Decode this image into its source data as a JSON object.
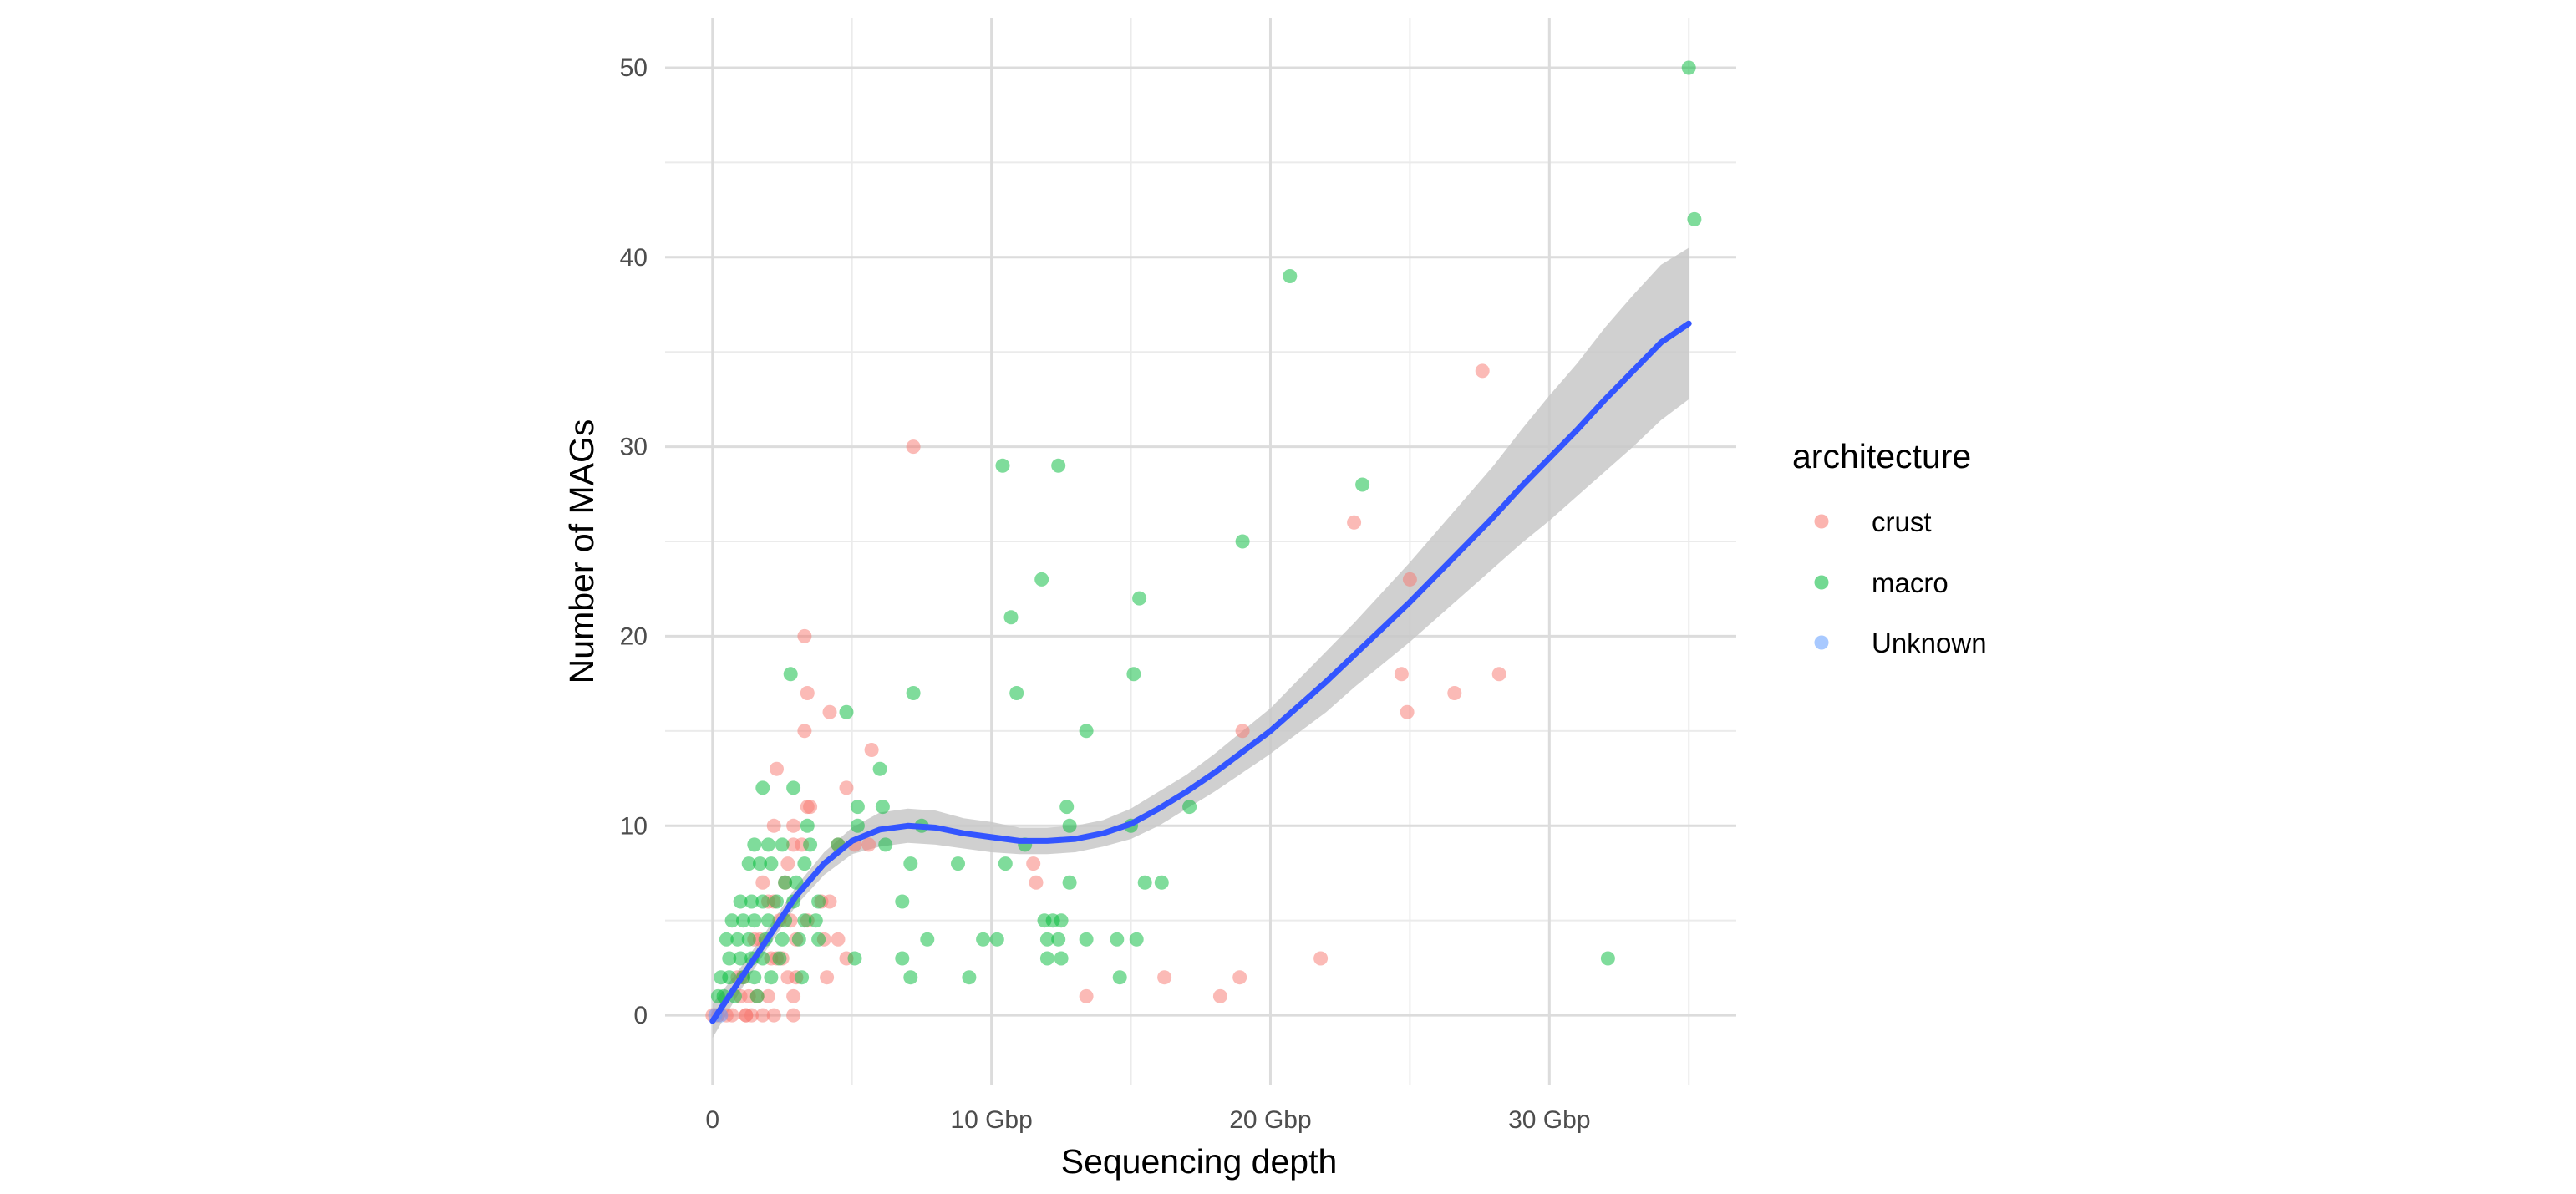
{
  "chart_data": {
    "type": "scatter",
    "title": "",
    "xlabel": "Sequencing depth",
    "ylabel": "Number of MAGs",
    "x_unit": "Gbp",
    "xlim": [
      -1.7,
      36.7
    ],
    "ylim": [
      -3.7,
      52.6
    ],
    "x_ticks": [
      {
        "value": 0,
        "label": "0"
      },
      {
        "value": 10,
        "label": "10 Gbp"
      },
      {
        "value": 20,
        "label": "20 Gbp"
      },
      {
        "value": 30,
        "label": "30 Gbp"
      }
    ],
    "y_ticks": [
      {
        "value": 0,
        "label": "0"
      },
      {
        "value": 10,
        "label": "10"
      },
      {
        "value": 20,
        "label": "20"
      },
      {
        "value": 30,
        "label": "30"
      },
      {
        "value": 40,
        "label": "40"
      },
      {
        "value": 50,
        "label": "50"
      }
    ],
    "grid": true,
    "legend": {
      "title": "architecture",
      "position": "right",
      "entries": [
        {
          "label": "crust",
          "color": "#F8766D"
        },
        {
          "label": "macro",
          "color": "#00BA38"
        },
        {
          "label": "Unknown",
          "color": "#619CFF"
        }
      ]
    },
    "series": [
      {
        "name": "crust",
        "color": "#F8766D",
        "x": [
          7.2,
          3.3,
          3.4,
          4.2,
          3.3,
          2.3,
          2.9,
          5.7,
          3.4,
          3.5,
          4.8,
          2.2,
          2.9,
          3.2,
          4.5,
          5.1,
          5.6,
          2.7,
          4.2,
          3.9,
          2.6,
          2.8,
          3.4,
          4.0,
          3.0,
          4.5,
          4.8,
          2.5,
          2.7,
          3.0,
          4.1,
          1.8,
          2.0,
          2.2,
          2.4,
          1.5,
          1.7,
          2.1,
          2.3,
          2.9,
          0.9,
          1.1,
          1.3,
          1.6,
          2.0,
          1.0,
          1.2,
          1.4,
          1.8,
          2.2,
          2.9,
          0.0,
          0.2,
          0.5,
          0.7,
          1.2,
          11.5,
          11.6,
          13.4,
          16.2,
          18.2,
          18.9,
          21.8,
          19.0,
          27.6,
          23.0,
          25.0,
          24.7,
          24.9,
          26.6,
          28.2
        ],
        "y": [
          30,
          20,
          17,
          16,
          15,
          13,
          10,
          14,
          11,
          11,
          12,
          10,
          9,
          9,
          9,
          9,
          9,
          8,
          6,
          6,
          7,
          5,
          5,
          4,
          4,
          4,
          3,
          3,
          2,
          2,
          2,
          7,
          6,
          6,
          5,
          4,
          4,
          3,
          3,
          0,
          2,
          2,
          1,
          1,
          1,
          1,
          0,
          0,
          0,
          0,
          1,
          0,
          0,
          0,
          0,
          0,
          8,
          7,
          1,
          2,
          1,
          2,
          3,
          15,
          34,
          26,
          23,
          18,
          16,
          17,
          18
        ]
      },
      {
        "name": "macro",
        "color": "#00BA38",
        "x": [
          35.0,
          35.2,
          20.7,
          10.4,
          12.4,
          23.3,
          19.0,
          11.8,
          15.3,
          10.7,
          2.8,
          15.1,
          10.9,
          7.2,
          13.4,
          4.8,
          6.0,
          1.8,
          2.9,
          6.1,
          5.2,
          3.4,
          5.2,
          12.7,
          7.5,
          12.8,
          15.0,
          17.1,
          11.2,
          6.2,
          1.5,
          2.0,
          2.5,
          3.5,
          4.5,
          7.1,
          8.8,
          10.5,
          15.5,
          16.1,
          12.8,
          6.8,
          3.3,
          3.8,
          1.3,
          1.7,
          2.1,
          2.6,
          3.0,
          3.7,
          11.9,
          12.2,
          12.5,
          12.0,
          1.0,
          1.4,
          1.8,
          2.3,
          2.9,
          0.7,
          1.1,
          1.5,
          2.0,
          2.6,
          3.3,
          13.4,
          7.7,
          9.7,
          10.2,
          14.5,
          15.2,
          6.8,
          12.4,
          12.0,
          12.5,
          0.5,
          0.9,
          1.3,
          1.9,
          2.5,
          3.1,
          3.8,
          5.1,
          0.6,
          1.0,
          1.4,
          1.8,
          2.4,
          7.1,
          9.2,
          14.6,
          0.3,
          0.6,
          1.1,
          1.5,
          2.1,
          3.2,
          0.2,
          0.4,
          0.8,
          1.6,
          32.1
        ],
        "y": [
          50,
          42,
          39,
          29,
          29,
          28,
          25,
          23,
          22,
          21,
          18,
          18,
          17,
          17,
          15,
          16,
          13,
          12,
          12,
          11,
          11,
          10,
          10,
          11,
          10,
          10,
          10,
          11,
          9,
          9,
          9,
          9,
          9,
          9,
          9,
          8,
          8,
          8,
          7,
          7,
          7,
          6,
          8,
          6,
          8,
          8,
          8,
          7,
          7,
          5,
          5,
          5,
          5,
          4,
          6,
          6,
          6,
          6,
          6,
          5,
          5,
          5,
          5,
          5,
          5,
          4,
          4,
          4,
          4,
          4,
          4,
          3,
          4,
          3,
          3,
          4,
          4,
          4,
          4,
          4,
          4,
          4,
          3,
          3,
          3,
          3,
          3,
          3,
          2,
          2,
          2,
          2,
          2,
          2,
          2,
          2,
          2,
          1,
          1,
          1,
          1,
          3
        ]
      },
      {
        "name": "Unknown",
        "color": "#619CFF",
        "x": [
          0.1,
          0.3
        ],
        "y": [
          0,
          0
        ]
      }
    ],
    "trend": {
      "method": "smooth",
      "color": "#3355FF",
      "band_color": "#C8C8C8",
      "x": [
        0,
        1,
        2,
        3,
        4,
        5,
        6,
        7,
        8,
        9,
        10,
        11,
        12,
        13,
        14,
        15,
        16,
        17,
        18,
        19,
        20,
        21,
        22,
        23,
        24,
        25,
        26,
        27,
        28,
        29,
        30,
        31,
        32,
        33,
        34,
        35
      ],
      "y": [
        -0.3,
        1.9,
        4.1,
        6.3,
        8.0,
        9.2,
        9.8,
        10.0,
        9.9,
        9.6,
        9.4,
        9.2,
        9.2,
        9.3,
        9.6,
        10.1,
        10.9,
        11.8,
        12.8,
        13.9,
        15.0,
        16.3,
        17.6,
        19.0,
        20.4,
        21.8,
        23.3,
        24.8,
        26.3,
        27.9,
        29.4,
        30.9,
        32.5,
        34.0,
        35.5,
        36.5
      ],
      "lower": [
        -1.2,
        1.3,
        3.6,
        5.8,
        7.4,
        8.5,
        8.9,
        9.1,
        9.0,
        8.8,
        8.6,
        8.5,
        8.5,
        8.6,
        8.9,
        9.3,
        10.0,
        10.9,
        11.8,
        12.8,
        13.8,
        14.9,
        16.0,
        17.3,
        18.5,
        19.7,
        21.0,
        22.3,
        23.6,
        24.9,
        26.1,
        27.4,
        28.7,
        30.0,
        31.4,
        32.5
      ],
      "upper": [
        0.6,
        2.5,
        4.6,
        6.8,
        8.6,
        9.9,
        10.7,
        10.9,
        10.8,
        10.4,
        10.2,
        9.9,
        9.9,
        10.0,
        10.3,
        10.9,
        11.8,
        12.7,
        13.8,
        15.0,
        16.2,
        17.7,
        19.2,
        20.7,
        22.3,
        23.9,
        25.6,
        27.3,
        29.0,
        30.9,
        32.7,
        34.4,
        36.3,
        38.0,
        39.6,
        40.5
      ]
    }
  }
}
